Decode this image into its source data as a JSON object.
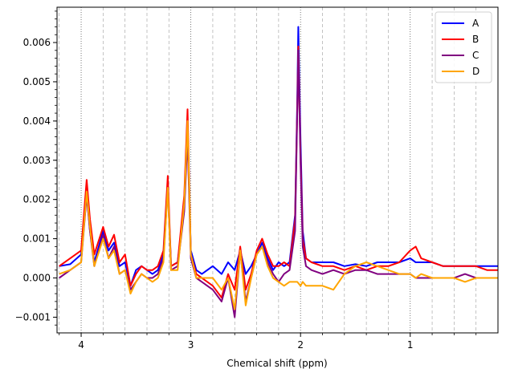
{
  "chart_data": {
    "type": "line",
    "title": "",
    "xlabel": "Chemical shift (ppm)",
    "ylabel": "",
    "x_reversed": true,
    "xlim": [
      4.22,
      0.2
    ],
    "ylim": [
      -0.0014,
      0.0069
    ],
    "xticks": [
      {
        "value": 4,
        "label": "4"
      },
      {
        "value": 3,
        "label": "3"
      },
      {
        "value": 2,
        "label": "2"
      },
      {
        "value": 1,
        "label": "1"
      }
    ],
    "yticks": [
      {
        "value": -0.001,
        "label": "−0.001"
      },
      {
        "value": 0.0,
        "label": "0.000"
      },
      {
        "value": 0.001,
        "label": "0.001"
      },
      {
        "value": 0.002,
        "label": "0.002"
      },
      {
        "value": 0.003,
        "label": "0.003"
      },
      {
        "value": 0.004,
        "label": "0.004"
      },
      {
        "value": 0.005,
        "label": "0.005"
      },
      {
        "value": 0.006,
        "label": "0.006"
      }
    ],
    "grid": "vertical dotted lines",
    "legend_position": "top-right",
    "series": [
      {
        "name": "A",
        "color": "#0000ff",
        "x": [
          4.2,
          4.1,
          4.0,
          3.95,
          3.92,
          3.88,
          3.8,
          3.75,
          3.7,
          3.65,
          3.6,
          3.55,
          3.5,
          3.45,
          3.4,
          3.35,
          3.3,
          3.25,
          3.21,
          3.18,
          3.12,
          3.06,
          3.03,
          3.0,
          2.95,
          2.9,
          2.8,
          2.72,
          2.66,
          2.6,
          2.55,
          2.5,
          2.45,
          2.4,
          2.35,
          2.3,
          2.25,
          2.2,
          2.15,
          2.1,
          2.05,
          2.03,
          2.02,
          2.0,
          1.98,
          1.95,
          1.9,
          1.8,
          1.7,
          1.6,
          1.5,
          1.4,
          1.3,
          1.2,
          1.1,
          1.0,
          0.95,
          0.9,
          0.8,
          0.7,
          0.6,
          0.5,
          0.4,
          0.3,
          0.2
        ],
        "y": [
          0.0003,
          0.00035,
          0.0006,
          0.0022,
          0.0012,
          0.0004,
          0.0012,
          0.0007,
          0.0009,
          0.0003,
          0.0004,
          -0.0002,
          0.0002,
          0.0003,
          0.0002,
          0.0001,
          0.0002,
          0.0006,
          0.0023,
          0.0003,
          0.0004,
          0.0018,
          0.0039,
          0.0007,
          0.0002,
          0.0001,
          0.0003,
          0.0001,
          0.0004,
          0.0002,
          0.0007,
          0.0001,
          0.0003,
          0.0006,
          0.0009,
          0.0005,
          0.0002,
          0.0004,
          0.0003,
          0.0004,
          0.0016,
          0.0045,
          0.0064,
          0.0035,
          0.0012,
          0.0005,
          0.0004,
          0.0004,
          0.0004,
          0.0003,
          0.00035,
          0.0003,
          0.0004,
          0.0004,
          0.0004,
          0.0005,
          0.0004,
          0.0004,
          0.0004,
          0.0003,
          0.0003,
          0.0003,
          0.0003,
          0.0003,
          0.0003
        ]
      },
      {
        "name": "B",
        "color": "#ff0000",
        "x": [
          4.2,
          4.1,
          4.0,
          3.95,
          3.92,
          3.88,
          3.8,
          3.75,
          3.7,
          3.65,
          3.6,
          3.55,
          3.5,
          3.45,
          3.4,
          3.35,
          3.3,
          3.25,
          3.21,
          3.18,
          3.12,
          3.06,
          3.03,
          3.0,
          2.95,
          2.9,
          2.8,
          2.72,
          2.66,
          2.6,
          2.55,
          2.5,
          2.45,
          2.4,
          2.35,
          2.3,
          2.25,
          2.2,
          2.15,
          2.1,
          2.05,
          2.03,
          2.02,
          2.0,
          1.98,
          1.95,
          1.9,
          1.8,
          1.7,
          1.6,
          1.5,
          1.4,
          1.3,
          1.2,
          1.1,
          1.0,
          0.95,
          0.9,
          0.8,
          0.7,
          0.6,
          0.5,
          0.4,
          0.3,
          0.2
        ],
        "y": [
          0.0003,
          0.0005,
          0.0007,
          0.0025,
          0.0015,
          0.0006,
          0.0013,
          0.0008,
          0.0011,
          0.0004,
          0.0006,
          -0.0002,
          0.0001,
          0.0003,
          0.0002,
          0.0002,
          0.0003,
          0.0007,
          0.0026,
          0.0003,
          0.0004,
          0.0021,
          0.0043,
          0.0006,
          0.0001,
          0.0,
          -0.0002,
          -0.0005,
          0.0001,
          -0.0003,
          0.0008,
          -0.0003,
          0.0001,
          0.0007,
          0.001,
          0.0006,
          0.0003,
          0.0003,
          0.0004,
          0.0003,
          0.0015,
          0.0043,
          0.0059,
          0.0031,
          0.001,
          0.0005,
          0.0004,
          0.0003,
          0.0003,
          0.0002,
          0.0003,
          0.0002,
          0.0003,
          0.0003,
          0.0004,
          0.0007,
          0.0008,
          0.0005,
          0.0004,
          0.0003,
          0.0003,
          0.0003,
          0.0003,
          0.0002,
          0.0002
        ]
      },
      {
        "name": "C",
        "color": "#800080",
        "x": [
          4.2,
          4.1,
          4.0,
          3.95,
          3.92,
          3.88,
          3.8,
          3.75,
          3.7,
          3.65,
          3.6,
          3.55,
          3.5,
          3.45,
          3.4,
          3.35,
          3.3,
          3.25,
          3.21,
          3.18,
          3.12,
          3.06,
          3.03,
          3.0,
          2.95,
          2.9,
          2.8,
          2.72,
          2.66,
          2.6,
          2.55,
          2.5,
          2.45,
          2.4,
          2.35,
          2.3,
          2.25,
          2.2,
          2.15,
          2.1,
          2.05,
          2.03,
          2.02,
          2.0,
          1.98,
          1.95,
          1.9,
          1.8,
          1.7,
          1.6,
          1.5,
          1.4,
          1.3,
          1.2,
          1.1,
          1.0,
          0.95,
          0.9,
          0.8,
          0.7,
          0.6,
          0.5,
          0.4,
          0.3,
          0.2
        ],
        "y": [
          0.0,
          0.0002,
          0.0004,
          0.0021,
          0.0012,
          0.0003,
          0.0011,
          0.0005,
          0.0008,
          0.0001,
          0.0002,
          -0.0003,
          -0.0001,
          0.0001,
          0.0,
          0.0,
          0.0001,
          0.0005,
          0.0023,
          0.0002,
          0.0003,
          0.0017,
          0.0036,
          0.0005,
          0.0,
          -0.0001,
          -0.0003,
          -0.0006,
          0.0,
          -0.001,
          0.0007,
          -0.0006,
          0.0,
          0.0006,
          0.0008,
          0.0004,
          0.0001,
          -0.0001,
          0.0001,
          0.0002,
          0.0012,
          0.0042,
          0.0058,
          0.0029,
          0.0008,
          0.0003,
          0.0002,
          0.0001,
          0.0002,
          0.0001,
          0.0002,
          0.0002,
          0.0001,
          0.0001,
          0.0001,
          0.0001,
          0.0,
          0.0,
          0.0,
          0.0,
          0.0,
          0.0001,
          0.0,
          0.0,
          0.0
        ]
      },
      {
        "name": "D",
        "color": "#ffa500",
        "x": [
          4.2,
          4.1,
          4.0,
          3.95,
          3.92,
          3.88,
          3.8,
          3.75,
          3.7,
          3.65,
          3.6,
          3.55,
          3.5,
          3.45,
          3.4,
          3.35,
          3.3,
          3.25,
          3.21,
          3.18,
          3.12,
          3.06,
          3.03,
          3.0,
          2.95,
          2.9,
          2.8,
          2.72,
          2.66,
          2.6,
          2.55,
          2.5,
          2.45,
          2.4,
          2.35,
          2.3,
          2.25,
          2.2,
          2.15,
          2.1,
          2.05,
          2.03,
          2.0,
          1.98,
          1.95,
          1.9,
          1.8,
          1.7,
          1.6,
          1.5,
          1.4,
          1.3,
          1.2,
          1.1,
          1.0,
          0.95,
          0.9,
          0.8,
          0.7,
          0.6,
          0.5,
          0.4,
          0.3,
          0.2
        ],
        "y": [
          0.0001,
          0.0002,
          0.0004,
          0.0022,
          0.0013,
          0.0003,
          0.001,
          0.0005,
          0.0007,
          0.0001,
          0.0002,
          -0.0004,
          -0.0001,
          0.0001,
          0.0,
          -0.0001,
          0.0,
          0.0004,
          0.0023,
          0.0002,
          0.0002,
          0.0019,
          0.004,
          0.0006,
          0.0,
          0.0,
          0.0,
          -0.0003,
          0.0,
          -0.0008,
          0.0007,
          -0.0007,
          0.0,
          0.0006,
          0.0008,
          0.0003,
          0.0,
          -0.0001,
          -0.0002,
          -0.0001,
          -0.0001,
          -0.0001,
          -0.0002,
          -0.0001,
          -0.0002,
          -0.0002,
          -0.0002,
          -0.0003,
          0.0001,
          0.0003,
          0.0004,
          0.0003,
          0.0002,
          0.0001,
          0.0001,
          0.0,
          0.0001,
          0.0,
          0.0,
          0.0,
          -0.0001,
          0.0,
          0.0,
          0.0
        ]
      }
    ]
  }
}
